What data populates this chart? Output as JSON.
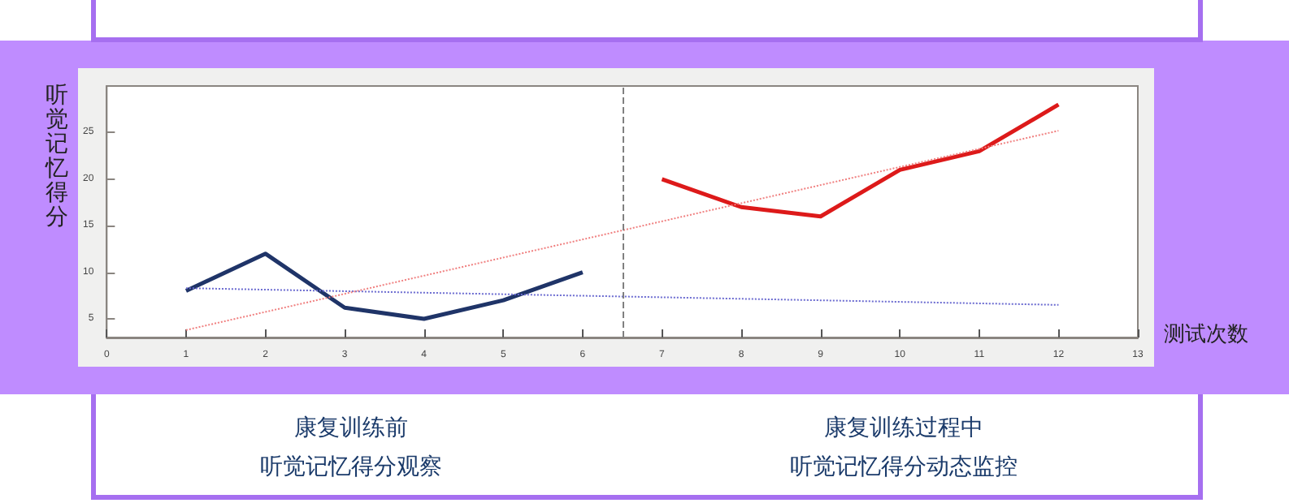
{
  "chart_data": {
    "type": "line",
    "xlabel": "测试次数",
    "ylabel": "听觉记忆得分",
    "annotations": [
      "康复训练前",
      "听觉记忆得分观察",
      "康复训练过程中",
      "听觉记忆得分动态监控"
    ],
    "xlim": [
      0,
      13
    ],
    "xticks": [
      0,
      1,
      2,
      3,
      4,
      5,
      6,
      7,
      8,
      9,
      10,
      11,
      12,
      13
    ],
    "ylim": [
      3,
      30
    ],
    "yticks": [
      5,
      10,
      15,
      20,
      25
    ],
    "grid": false,
    "marker": "none",
    "line_style": "solid",
    "ref_lines": [
      {
        "axis": "x",
        "value": 6.5,
        "color": "#808080",
        "line_style": "dashed"
      }
    ],
    "series": [
      {
        "color": "#1f3468",
        "x": [
          1,
          2,
          3,
          4,
          5,
          6
        ],
        "values": [
          8,
          12,
          6.2,
          5,
          7,
          10
        ]
      },
      {
        "color": "#dd1a1a",
        "x": [
          7,
          8,
          9,
          10,
          11,
          12
        ],
        "values": [
          20,
          17,
          16,
          21,
          23,
          28
        ]
      },
      {
        "color": "#6a6ad0",
        "x": [
          1,
          12
        ],
        "values": [
          8.3,
          6.5
        ],
        "line_style": "dotted"
      },
      {
        "color": "#f08080",
        "x": [
          1,
          12
        ],
        "values": [
          3.8,
          25.2
        ],
        "line_style": "dotted"
      }
    ]
  }
}
